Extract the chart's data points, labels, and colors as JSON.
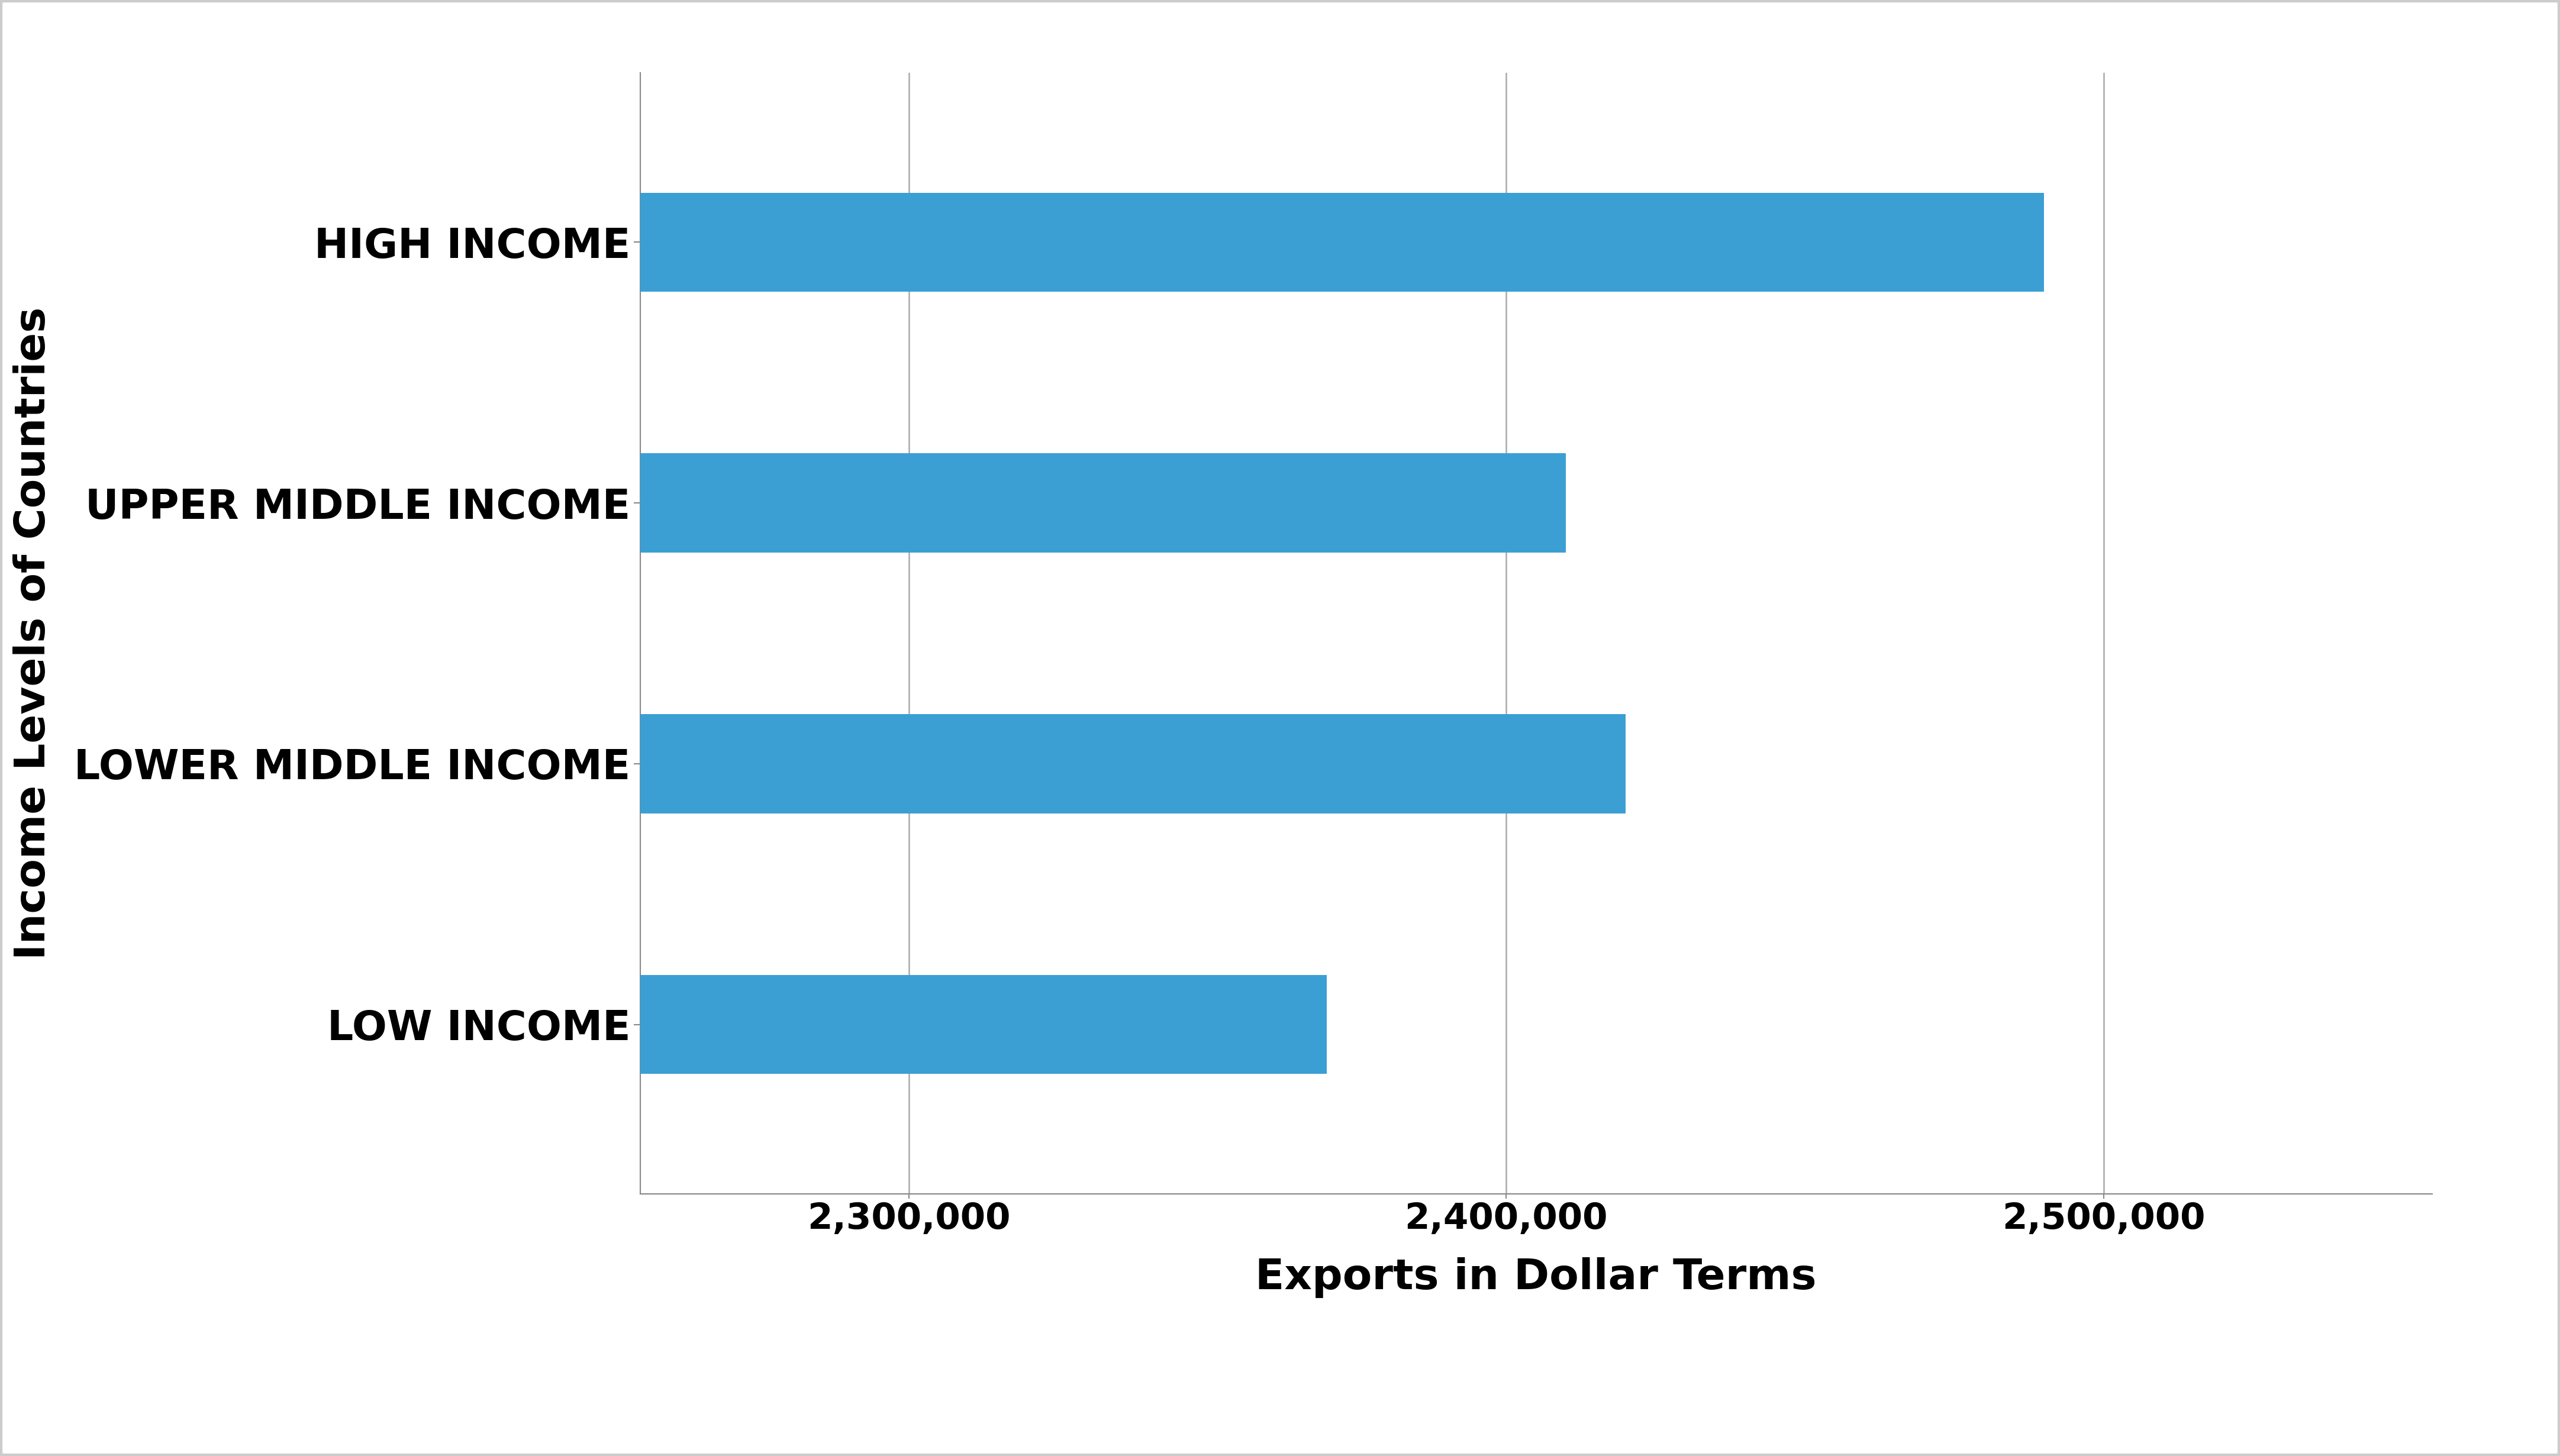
{
  "categories": [
    "LOW INCOME",
    "LOWER MIDDLE INCOME",
    "UPPER MIDDLE INCOME",
    "HIGH INCOME"
  ],
  "values": [
    2370000,
    2420000,
    2410000,
    2490000
  ],
  "bar_color": "#3b9fd4",
  "xlabel": "Exports in Dollar Terms",
  "ylabel": "Income Levels of Countries",
  "xlim": [
    2255000,
    2555000
  ],
  "xticks": [
    2300000,
    2400000,
    2500000
  ],
  "xtick_labels": [
    "2,300,000",
    "2,400,000",
    "2,500,000"
  ],
  "background_color": "#ffffff",
  "bar_height": 0.38,
  "xlabel_fontsize": 52,
  "ylabel_fontsize": 52,
  "tick_fontsize": 44,
  "ytick_fontsize": 50,
  "grid_color": "#aaaaaa",
  "spine_color": "#888888",
  "bar_edge_color": "none",
  "figure_border_color": "#cccccc"
}
